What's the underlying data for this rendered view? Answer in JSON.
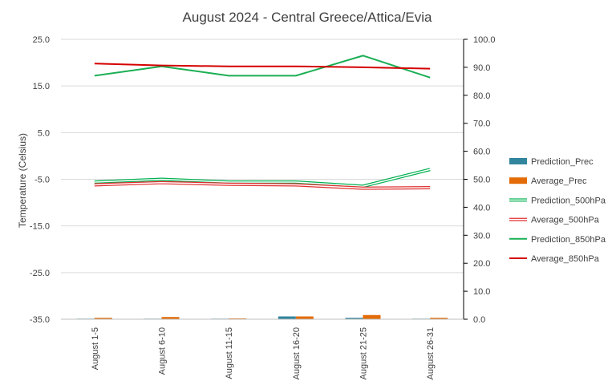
{
  "chart_data": {
    "type": "line",
    "title": "August 2024 - Central Greece/Attica/Evia",
    "ylabel": "Temperature  (Celsius)",
    "xlabel": "",
    "categories": [
      "August 1-5",
      "August 6-10",
      "August 11-15",
      "August 16-20",
      "August 21-25",
      "August 26-31"
    ],
    "ylim_left": [
      -35,
      25
    ],
    "yticks_left": [
      "25.0",
      "15.0",
      "5.0",
      "-5.0",
      "-15.0",
      "-25.0",
      "-35.0"
    ],
    "ylim_right": [
      0,
      100
    ],
    "yticks_right": [
      "100.0",
      "90.0",
      "80.0",
      "70.0",
      "60.0",
      "50.0",
      "40.0",
      "30.0",
      "20.0",
      "10.0",
      "0.0"
    ],
    "grid": true,
    "legend_position": "right",
    "series": [
      {
        "name": "Prediction_Prec",
        "type": "bar",
        "axis": "right",
        "color": "#31859c",
        "values": [
          0.2,
          0.2,
          0.2,
          1.0,
          0.5,
          0.2
        ]
      },
      {
        "name": "Average_Prec",
        "type": "bar",
        "axis": "right",
        "color": "#e36c09",
        "values": [
          0.5,
          0.8,
          0.3,
          1.0,
          1.5,
          0.5
        ]
      },
      {
        "name": "Prediction_500hPa",
        "type": "line",
        "style": "double",
        "axis": "right",
        "color": "#00b050",
        "values": [
          49.0,
          50.0,
          49.0,
          49.0,
          47.5,
          53.5
        ]
      },
      {
        "name": "Average_500hPa",
        "type": "line",
        "style": "double",
        "axis": "right",
        "color": "#e03030",
        "values": [
          48.0,
          48.8,
          48.2,
          48.0,
          46.8,
          47.0
        ]
      },
      {
        "name": "Prediction_850hPa",
        "type": "line",
        "axis": "left",
        "color": "#1aaf54",
        "values": [
          17.2,
          19.2,
          17.2,
          17.2,
          21.5,
          16.8
        ]
      },
      {
        "name": "Average_850hPa",
        "type": "line",
        "axis": "left",
        "color": "#d50000",
        "values": [
          19.8,
          19.4,
          19.2,
          19.2,
          19.0,
          18.7
        ]
      }
    ]
  }
}
